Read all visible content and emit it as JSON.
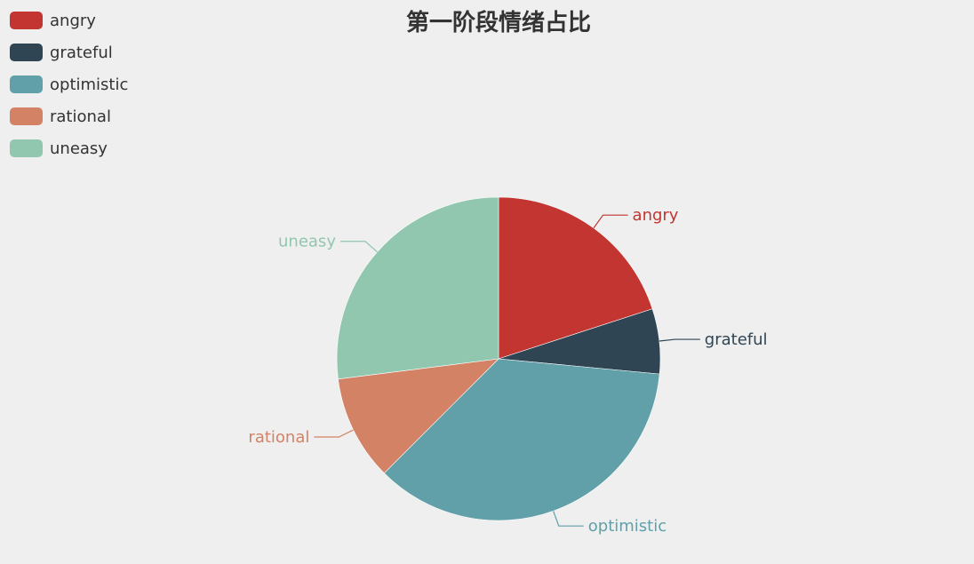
{
  "chart_data": {
    "type": "pie",
    "title": "第一阶段情绪占比",
    "legend_position": "top-left",
    "categories": [
      "angry",
      "grateful",
      "optimistic",
      "rational",
      "uneasy"
    ],
    "values": [
      20.0,
      6.5,
      36.0,
      10.5,
      27.0
    ],
    "colors": [
      "#c23531",
      "#2f4554",
      "#61a0a8",
      "#d48265",
      "#91c7ae"
    ],
    "value_unit": "percent (estimated)"
  }
}
